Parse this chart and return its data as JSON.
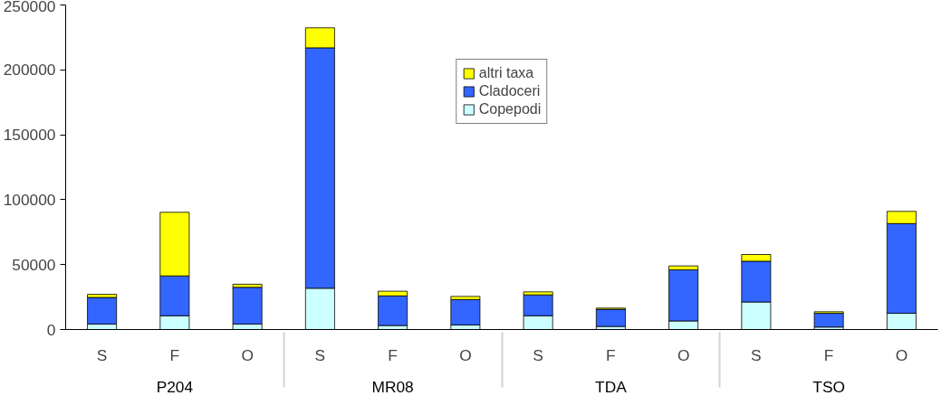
{
  "chart_data": {
    "type": "bar",
    "stacked": true,
    "categories": [
      "S",
      "F",
      "O",
      "S",
      "F",
      "O",
      "S",
      "F",
      "O",
      "S",
      "F",
      "O"
    ],
    "annotations": [
      "P204",
      "MR08",
      "TDA",
      "TSO"
    ],
    "series": [
      {
        "name": "Copepodi",
        "color": "#ccffff",
        "values": [
          4200,
          10600,
          4200,
          31800,
          3100,
          3500,
          10600,
          2400,
          6600,
          21200,
          1900,
          12500
        ]
      },
      {
        "name": "Cladoceri",
        "color": "#3366ff",
        "values": [
          20500,
          30700,
          28300,
          185200,
          22800,
          19600,
          16100,
          13200,
          39400,
          31400,
          10600,
          69100
        ]
      },
      {
        "name": "altri taxa",
        "color": "#ffff00",
        "values": [
          2400,
          49000,
          2400,
          15400,
          3600,
          2400,
          2300,
          900,
          3000,
          5200,
          1200,
          9400
        ]
      }
    ],
    "ylim": [
      0,
      250000
    ],
    "yticks": [
      0,
      50000,
      100000,
      150000,
      200000,
      250000
    ],
    "grid": false,
    "legend": "top"
  }
}
